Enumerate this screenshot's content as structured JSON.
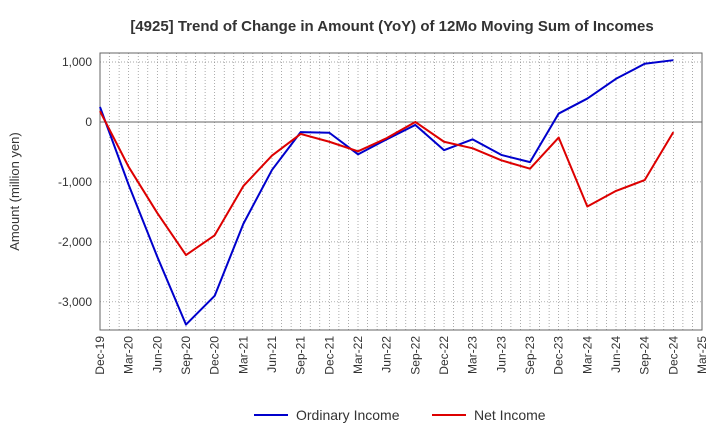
{
  "chart_data": {
    "type": "line",
    "title": "[4925]  Trend of Change in Amount (YoY) of 12Mo Moving Sum of Incomes",
    "xlabel": "",
    "ylabel": "Amount (million yen)",
    "ylim": [
      -3470,
      1150
    ],
    "yticks": [
      1000,
      0,
      -1000,
      -2000,
      -3000
    ],
    "ytick_labels": [
      "1,000",
      "0",
      "-1,000",
      "-2,000",
      "-3,000"
    ],
    "categories": [
      "Dec-19",
      "Mar-20",
      "Jun-20",
      "Sep-20",
      "Dec-20",
      "Mar-21",
      "Jun-21",
      "Sep-21",
      "Dec-21",
      "Mar-22",
      "Jun-22",
      "Sep-22",
      "Dec-22",
      "Mar-23",
      "Jun-23",
      "Sep-23",
      "Dec-23",
      "Mar-24",
      "Jun-24",
      "Sep-24",
      "Dec-24",
      "Mar-25"
    ],
    "grid": true,
    "legend_position": "bottom",
    "series": [
      {
        "name": "Ordinary Income",
        "color": "#0000cc",
        "values": [
          250,
          -1050,
          -2250,
          -3380,
          -2900,
          -1700,
          -800,
          -170,
          -180,
          -540,
          -290,
          -50,
          -470,
          -290,
          -550,
          -670,
          140,
          390,
          720,
          970,
          1030,
          null
        ]
      },
      {
        "name": "Net Income",
        "color": "#dd0000",
        "values": [
          180,
          -750,
          -1520,
          -2220,
          -1890,
          -1070,
          -560,
          -200,
          -330,
          -490,
          -270,
          0,
          -330,
          -440,
          -640,
          -780,
          -260,
          -1410,
          -1150,
          -970,
          -170,
          null
        ]
      }
    ]
  }
}
